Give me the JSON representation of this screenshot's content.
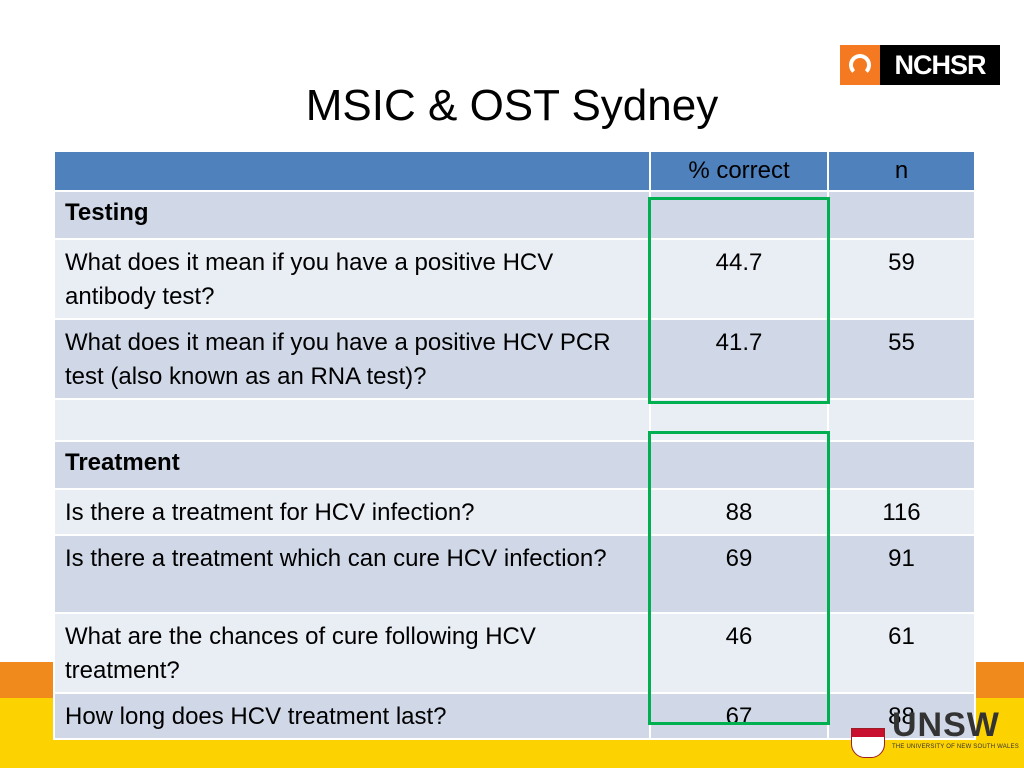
{
  "slide": {
    "title": "MSIC & OST Sydney",
    "logo_top_text": "NCHSR",
    "logo_bottom_text": "UNSW",
    "logo_bottom_subtitle": "THE UNIVERSITY OF NEW SOUTH WALES"
  },
  "table": {
    "headers": [
      "",
      "% correct",
      "n"
    ],
    "rows": [
      {
        "type": "section",
        "label": "Testing",
        "pct": "",
        "n": ""
      },
      {
        "type": "data",
        "label": "What does it mean if you have a positive HCV antibody test?",
        "pct": "44.7",
        "n": "59"
      },
      {
        "type": "data",
        "label": "What does it mean if you have a positive HCV PCR test (also known as an RNA test)?",
        "pct": "41.7",
        "n": "55"
      },
      {
        "type": "spacer",
        "label": "",
        "pct": "",
        "n": ""
      },
      {
        "type": "section",
        "label": "Treatment",
        "pct": "",
        "n": ""
      },
      {
        "type": "data",
        "label": "Is there a treatment for HCV infection?",
        "pct": "88",
        "n": "116"
      },
      {
        "type": "data",
        "label": "Is there a treatment which can cure HCV infection?",
        "pct": "69",
        "n": "91"
      },
      {
        "type": "data",
        "label": "What are the chances of cure following HCV treatment?",
        "pct": "46",
        "n": "61"
      },
      {
        "type": "data",
        "label": "How long does HCV treatment last?",
        "pct": "67",
        "n": "88"
      }
    ]
  },
  "colors": {
    "header_blue": "#4f81bd",
    "row_dark": "#d0d8e8",
    "row_light": "#e9edf4",
    "highlight_green": "#00b050",
    "band_orange": "#f08a1c",
    "band_yellow": "#fdd201"
  }
}
